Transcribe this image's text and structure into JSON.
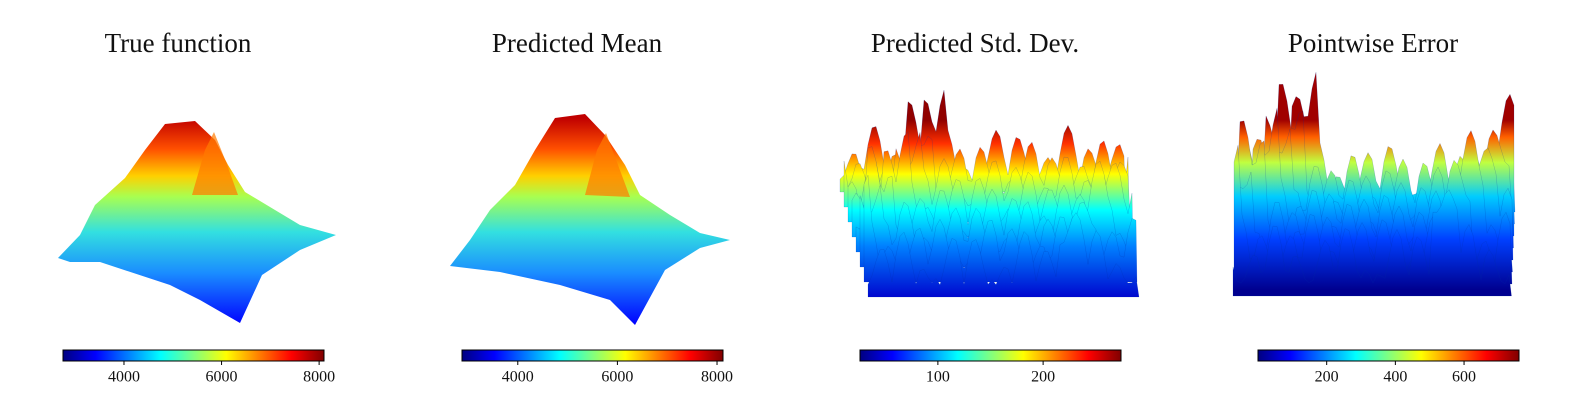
{
  "chart_data": [
    {
      "type": "surface",
      "title": "True function",
      "colormap": "jet",
      "clim": [
        2750,
        8100
      ],
      "cticks": [
        4000,
        6000,
        8000
      ]
    },
    {
      "type": "surface",
      "title": "Predicted Mean",
      "colormap": "jet",
      "clim": [
        2880,
        8120
      ],
      "cticks": [
        4000,
        6000,
        8000
      ]
    },
    {
      "type": "surface",
      "title": "Predicted Std. Dev.",
      "colormap": "jet",
      "clim": [
        26,
        274
      ],
      "cticks": [
        100,
        200
      ]
    },
    {
      "type": "surface",
      "title": "Pointwise Error",
      "colormap": "jet",
      "clim": [
        0,
        760
      ],
      "cticks": [
        200,
        400,
        600
      ]
    }
  ]
}
